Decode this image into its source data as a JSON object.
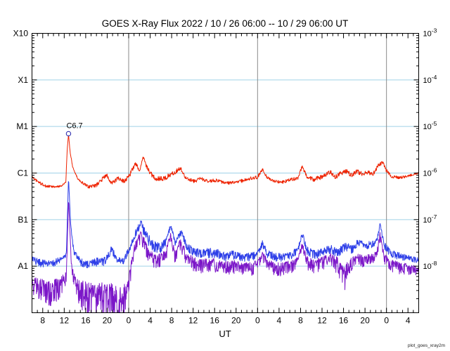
{
  "chart_data": {
    "type": "line",
    "title": "GOES X-Ray Flux   2022 / 10 / 26   06:00 -- 10 / 29   06:00  UT",
    "xlabel": "UT",
    "watermark": "plot_goes_xray2m",
    "x_hours_range": [
      6,
      78
    ],
    "ylim_log10": [
      -9,
      -3
    ],
    "grid_color": "#a0d2e8",
    "day_line_color": "#8a8a8a",
    "frame_color": "#000000",
    "day_boundary_hours": [
      24,
      48,
      72
    ],
    "x_axis": {
      "label": "UT",
      "first_major_tick_hour": 8,
      "major_tick_step_hours": 4,
      "minor_tick_step_hours": 1,
      "major_tick_labels": [
        "8",
        "12",
        "16",
        "20",
        "0",
        "4",
        "8",
        "12",
        "16",
        "20",
        "0",
        "4",
        "8",
        "12",
        "16",
        "20",
        "0",
        "4"
      ]
    },
    "y_axis_left": {
      "labels": [
        {
          "text": "X10",
          "exp": -3
        },
        {
          "text": "X1",
          "exp": -4
        },
        {
          "text": "M1",
          "exp": -5
        },
        {
          "text": "C1",
          "exp": -6
        },
        {
          "text": "B1",
          "exp": -7
        },
        {
          "text": "A1",
          "exp": -8
        }
      ]
    },
    "y_axis_right": {
      "base": "10",
      "exponents": [
        -3,
        -4,
        -5,
        -6,
        -7,
        -8
      ]
    },
    "gridline_exponents": [
      -4,
      -5,
      -6,
      -7,
      -8
    ],
    "annotations": [
      {
        "label": "C6.7",
        "hour": 12.8,
        "log10_flux": -5.17,
        "marker": "open-circle",
        "marker_color": "#2222aa"
      }
    ],
    "series": [
      {
        "name": "xray-long-wavelength",
        "color": "#ee2200",
        "down_factor": 1.0,
        "anchors": [
          [
            6,
            -6.08,
            0.02
          ],
          [
            7,
            -6.18,
            0.03
          ],
          [
            8.5,
            -6.28,
            0.03
          ],
          [
            10.5,
            -6.3,
            0.02
          ],
          [
            11.5,
            -6.27,
            0.02
          ],
          [
            12.3,
            -6.2,
            0.01
          ],
          [
            12.55,
            -5.5,
            0
          ],
          [
            12.8,
            -5.17,
            0
          ],
          [
            13.1,
            -5.55,
            0.01
          ],
          [
            13.6,
            -5.88,
            0.02
          ],
          [
            14.5,
            -6.12,
            0.02
          ],
          [
            15.5,
            -6.22,
            0.03
          ],
          [
            16.5,
            -6.3,
            0.03
          ],
          [
            18,
            -6.26,
            0.04
          ],
          [
            19.3,
            -6.1,
            0.05
          ],
          [
            20,
            -6.05,
            0.05
          ],
          [
            20.8,
            -6.22,
            0.04
          ],
          [
            22,
            -6.12,
            0.05
          ],
          [
            23.2,
            -6.18,
            0.04
          ],
          [
            24.3,
            -6.02,
            0.05
          ],
          [
            25.3,
            -5.78,
            0.05
          ],
          [
            26,
            -5.98,
            0.04
          ],
          [
            26.7,
            -5.65,
            0.02
          ],
          [
            27.2,
            -5.82,
            0.05
          ],
          [
            28,
            -6.0,
            0.05
          ],
          [
            29,
            -6.12,
            0.05
          ],
          [
            30.5,
            -6.12,
            0.05
          ],
          [
            32,
            -6.02,
            0.06
          ],
          [
            33.7,
            -5.9,
            0.04
          ],
          [
            34.5,
            -6.08,
            0.04
          ],
          [
            36,
            -6.18,
            0.04
          ],
          [
            37.5,
            -6.12,
            0.04
          ],
          [
            39,
            -6.18,
            0.04
          ],
          [
            40.5,
            -6.15,
            0.04
          ],
          [
            42,
            -6.22,
            0.03
          ],
          [
            43.5,
            -6.2,
            0.03
          ],
          [
            45,
            -6.17,
            0.04
          ],
          [
            46.5,
            -6.12,
            0.04
          ],
          [
            48,
            -6.08,
            0.04
          ],
          [
            48.9,
            -5.92,
            0.03
          ],
          [
            49.8,
            -6.1,
            0.03
          ],
          [
            51,
            -6.17,
            0.03
          ],
          [
            52.5,
            -6.2,
            0.03
          ],
          [
            54,
            -6.15,
            0.04
          ],
          [
            55.5,
            -6.1,
            0.04
          ],
          [
            56.3,
            -5.86,
            0.03
          ],
          [
            57.2,
            -6.08,
            0.04
          ],
          [
            58.5,
            -6.14,
            0.05
          ],
          [
            60,
            -6.08,
            0.05
          ],
          [
            61.5,
            -5.98,
            0.05
          ],
          [
            62.5,
            -6.08,
            0.05
          ],
          [
            63.5,
            -6.0,
            0.05
          ],
          [
            64.5,
            -5.96,
            0.05
          ],
          [
            65.5,
            -6.05,
            0.05
          ],
          [
            66.5,
            -5.97,
            0.05
          ],
          [
            67.5,
            -6.02,
            0.05
          ],
          [
            68.5,
            -5.98,
            0.05
          ],
          [
            69.5,
            -6.02,
            0.04
          ],
          [
            70.6,
            -5.82,
            0.04
          ],
          [
            71.3,
            -5.78,
            0.04
          ],
          [
            72,
            -5.95,
            0.04
          ],
          [
            73,
            -6.08,
            0.03
          ],
          [
            74.5,
            -6.1,
            0.03
          ],
          [
            76,
            -6.06,
            0.03
          ],
          [
            78,
            -6.0,
            0.02
          ]
        ]
      },
      {
        "name": "xray-short-wavelength-a",
        "color": "#2e3fe8",
        "down_factor": 1.4,
        "anchors": [
          [
            6,
            -7.85,
            0.06
          ],
          [
            7.5,
            -7.92,
            0.07
          ],
          [
            9,
            -7.95,
            0.07
          ],
          [
            10.5,
            -7.9,
            0.07
          ],
          [
            11.8,
            -7.82,
            0.05
          ],
          [
            12.4,
            -7.75,
            0.03
          ],
          [
            12.8,
            -6.1,
            0
          ],
          [
            13.2,
            -7.1,
            0.03
          ],
          [
            13.8,
            -7.7,
            0.05
          ],
          [
            15,
            -7.9,
            0.07
          ],
          [
            16.5,
            -7.95,
            0.07
          ],
          [
            18,
            -7.9,
            0.08
          ],
          [
            19.5,
            -7.88,
            0.08
          ],
          [
            20.8,
            -7.62,
            0.07
          ],
          [
            21.8,
            -7.85,
            0.07
          ],
          [
            23,
            -7.88,
            0.06
          ],
          [
            24.2,
            -7.6,
            0.06
          ],
          [
            25.2,
            -7.3,
            0.07
          ],
          [
            26.3,
            -7.08,
            0.08
          ],
          [
            27.3,
            -7.35,
            0.1
          ],
          [
            28.5,
            -7.55,
            0.1
          ],
          [
            29.8,
            -7.6,
            0.1
          ],
          [
            31,
            -7.45,
            0.08
          ],
          [
            31.8,
            -7.12,
            0.05
          ],
          [
            32.6,
            -7.5,
            0.08
          ],
          [
            33.7,
            -7.25,
            0.08
          ],
          [
            34.8,
            -7.55,
            0.08
          ],
          [
            36,
            -7.68,
            0.08
          ],
          [
            37.5,
            -7.72,
            0.08
          ],
          [
            39,
            -7.7,
            0.09
          ],
          [
            40.5,
            -7.72,
            0.09
          ],
          [
            42,
            -7.78,
            0.08
          ],
          [
            43.5,
            -7.74,
            0.08
          ],
          [
            45,
            -7.78,
            0.08
          ],
          [
            46.5,
            -7.8,
            0.08
          ],
          [
            48,
            -7.74,
            0.07
          ],
          [
            48.9,
            -7.5,
            0.06
          ],
          [
            49.8,
            -7.72,
            0.07
          ],
          [
            51,
            -7.78,
            0.08
          ],
          [
            52.5,
            -7.8,
            0.08
          ],
          [
            54,
            -7.76,
            0.08
          ],
          [
            55.5,
            -7.65,
            0.06
          ],
          [
            56.3,
            -7.28,
            0.05
          ],
          [
            57.2,
            -7.65,
            0.08
          ],
          [
            58.5,
            -7.74,
            0.08
          ],
          [
            60,
            -7.7,
            0.08
          ],
          [
            61.5,
            -7.62,
            0.08
          ],
          [
            63,
            -7.7,
            0.09
          ],
          [
            64.3,
            -7.56,
            0.08
          ],
          [
            65.5,
            -7.62,
            0.08
          ],
          [
            66.8,
            -7.48,
            0.07
          ],
          [
            68,
            -7.56,
            0.08
          ],
          [
            69.2,
            -7.52,
            0.07
          ],
          [
            70.2,
            -7.45,
            0.06
          ],
          [
            70.8,
            -7.1,
            0.04
          ],
          [
            71.6,
            -7.55,
            0.07
          ],
          [
            72.8,
            -7.72,
            0.07
          ],
          [
            74.5,
            -7.78,
            0.07
          ],
          [
            76,
            -7.82,
            0.06
          ],
          [
            77.5,
            -7.86,
            0.05
          ],
          [
            78,
            -7.86,
            0.05
          ]
        ]
      },
      {
        "name": "xray-short-wavelength-b",
        "color": "#7b16c8",
        "down_factor": 2.0,
        "anchors": [
          [
            6,
            -8.35,
            0.14
          ],
          [
            7.5,
            -8.45,
            0.18
          ],
          [
            9,
            -8.5,
            0.2
          ],
          [
            10.5,
            -8.45,
            0.18
          ],
          [
            11.8,
            -8.3,
            0.12
          ],
          [
            12.4,
            -8.2,
            0.08
          ],
          [
            12.8,
            -6.55,
            0
          ],
          [
            13.3,
            -7.9,
            0.06
          ],
          [
            13.9,
            -8.3,
            0.12
          ],
          [
            15,
            -8.5,
            0.2
          ],
          [
            16.5,
            -8.6,
            0.25
          ],
          [
            17.8,
            -8.65,
            0.28
          ],
          [
            19,
            -8.55,
            0.25
          ],
          [
            20.3,
            -8.6,
            0.28
          ],
          [
            21.5,
            -8.7,
            0.3
          ],
          [
            22.8,
            -8.75,
            0.3
          ],
          [
            23.8,
            -8.5,
            0.2
          ],
          [
            24.4,
            -8.05,
            0.12
          ],
          [
            25.2,
            -7.55,
            0.09
          ],
          [
            26.3,
            -7.32,
            0.09
          ],
          [
            27.3,
            -7.6,
            0.12
          ],
          [
            28.5,
            -7.8,
            0.12
          ],
          [
            29.8,
            -7.85,
            0.12
          ],
          [
            31,
            -7.7,
            0.1
          ],
          [
            31.8,
            -7.32,
            0.06
          ],
          [
            32.6,
            -7.75,
            0.1
          ],
          [
            33.7,
            -7.48,
            0.1
          ],
          [
            34.8,
            -7.8,
            0.1
          ],
          [
            36,
            -7.9,
            0.1
          ],
          [
            37.5,
            -7.95,
            0.1
          ],
          [
            39,
            -7.92,
            0.1
          ],
          [
            40.5,
            -7.95,
            0.1
          ],
          [
            42,
            -8.0,
            0.1
          ],
          [
            43.5,
            -7.97,
            0.1
          ],
          [
            45,
            -8.0,
            0.1
          ],
          [
            46.5,
            -8.02,
            0.1
          ],
          [
            48,
            -7.96,
            0.09
          ],
          [
            48.9,
            -7.72,
            0.08
          ],
          [
            49.8,
            -7.95,
            0.09
          ],
          [
            51,
            -8.0,
            0.1
          ],
          [
            52.5,
            -8.02,
            0.1
          ],
          [
            54,
            -7.98,
            0.1
          ],
          [
            55.5,
            -7.88,
            0.08
          ],
          [
            56.3,
            -7.52,
            0.06
          ],
          [
            57.2,
            -7.88,
            0.1
          ],
          [
            58.5,
            -7.95,
            0.1
          ],
          [
            60,
            -7.9,
            0.1
          ],
          [
            61.5,
            -7.82,
            0.1
          ],
          [
            63,
            -7.95,
            0.14
          ],
          [
            64,
            -8.25,
            0.22
          ],
          [
            65,
            -7.95,
            0.12
          ],
          [
            66.5,
            -7.82,
            0.1
          ],
          [
            68,
            -7.88,
            0.1
          ],
          [
            69.2,
            -7.8,
            0.09
          ],
          [
            70.2,
            -7.72,
            0.07
          ],
          [
            70.8,
            -7.32,
            0.05
          ],
          [
            71.6,
            -7.82,
            0.09
          ],
          [
            72.8,
            -7.95,
            0.09
          ],
          [
            74.5,
            -8.0,
            0.09
          ],
          [
            76,
            -8.02,
            0.08
          ],
          [
            77.5,
            -8.05,
            0.07
          ],
          [
            78,
            -8.02,
            0.07
          ]
        ]
      }
    ]
  }
}
